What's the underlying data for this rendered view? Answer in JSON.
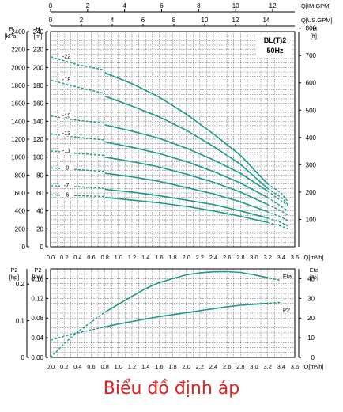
{
  "caption": "Biểu đồ định áp",
  "colors": {
    "curve": "#1a9a8a",
    "grid": "#555555",
    "caption": "#e32020",
    "axis": "#000000"
  },
  "chart_data": [
    {
      "type": "line",
      "title": "BL(T)2",
      "subtitle": "50Hz",
      "x_axes": {
        "bottom": {
          "label": "Q[m³/h]",
          "ticks": [
            0.0,
            0.2,
            0.4,
            0.6,
            0.8,
            1.0,
            1.2,
            1.4,
            1.6,
            1.8,
            2.0,
            2.2,
            2.4,
            2.6,
            2.8,
            3.0,
            3.2,
            3.4,
            3.6
          ],
          "tick_labels": [
            "0.0",
            "0.2",
            "0.4",
            "0.6",
            "0.8",
            "1.0",
            "1.2",
            "1.4",
            "1.6",
            "1.8",
            "2.0",
            "2.2",
            "2.4",
            "2.6",
            "2.8",
            "3.0",
            "3.2",
            "3.4",
            "3.6"
          ]
        },
        "top_imperial": {
          "label": "Q[IM.GPM]",
          "ticks": [
            0,
            2,
            4,
            6,
            8,
            10,
            12
          ]
        },
        "top_us": {
          "label": "Q[US.GPM]",
          "ticks": [
            0,
            2,
            4,
            6,
            8,
            10,
            12,
            14
          ]
        }
      },
      "y_axes": {
        "kpa": {
          "label_top": "P",
          "label_unit": "[kPa]",
          "ticks": [
            0,
            200,
            400,
            600,
            800,
            1000,
            1200,
            1400,
            1600,
            1800,
            2000,
            2200,
            2400
          ]
        },
        "m": {
          "label_top": "H",
          "label_unit": "[m]",
          "ticks": [
            0,
            20,
            40,
            60,
            80,
            100,
            120,
            140,
            160,
            180,
            200,
            220,
            240
          ]
        },
        "ft": {
          "label_top": "H",
          "label_unit": "[ft]",
          "ticks": [
            100,
            200,
            300,
            400,
            500,
            600,
            700,
            800
          ]
        }
      },
      "xlim": [
        0,
        3.6
      ],
      "ylim": [
        0,
        240
      ],
      "grid": true,
      "series": [
        {
          "name": "-22",
          "points": [
            [
              0,
              212
            ],
            [
              0.4,
              203
            ],
            [
              0.8,
              194
            ],
            [
              1.2,
              182
            ],
            [
              1.6,
              167
            ],
            [
              2.0,
              148
            ],
            [
              2.4,
              126
            ],
            [
              2.8,
              102
            ],
            [
              3.2,
              70
            ]
          ],
          "dashed_start": [
            [
              0,
              212
            ],
            [
              0.4,
              203
            ],
            [
              0.8,
              197
            ]
          ],
          "dashed_end": [
            [
              3.2,
              70
            ],
            [
              3.4,
              60
            ],
            [
              3.5,
              50
            ]
          ]
        },
        {
          "name": "-18",
          "points": [
            [
              0,
              186
            ],
            [
              0.4,
              178
            ],
            [
              0.8,
              168
            ],
            [
              1.2,
              157
            ],
            [
              1.6,
              145
            ],
            [
              2.0,
              130
            ],
            [
              2.4,
              112
            ],
            [
              2.8,
              92
            ],
            [
              3.2,
              65
            ]
          ],
          "dashed_start": [
            [
              0,
              186
            ],
            [
              0.4,
              178
            ],
            [
              0.8,
              171
            ]
          ],
          "dashed_end": [
            [
              3.2,
              65
            ],
            [
              3.4,
              55
            ],
            [
              3.5,
              47
            ]
          ]
        },
        {
          "name": "-15",
          "points": [
            [
              0,
              146
            ],
            [
              0.4,
              141
            ],
            [
              0.8,
              136
            ],
            [
              1.2,
              129
            ],
            [
              1.6,
              121
            ],
            [
              2.0,
              110
            ],
            [
              2.4,
              97
            ],
            [
              2.8,
              82
            ],
            [
              3.2,
              62
            ]
          ],
          "dashed_start": [
            [
              0,
              146
            ],
            [
              0.4,
              141
            ],
            [
              0.8,
              138
            ]
          ],
          "dashed_end": [
            [
              3.2,
              62
            ],
            [
              3.4,
              51
            ],
            [
              3.5,
              46
            ]
          ]
        },
        {
          "name": "-13",
          "points": [
            [
              0,
              126
            ],
            [
              0.4,
              122
            ],
            [
              0.8,
              117
            ],
            [
              1.2,
              111
            ],
            [
              1.6,
              104
            ],
            [
              2.0,
              95
            ],
            [
              2.4,
              84
            ],
            [
              2.8,
              71
            ],
            [
              3.2,
              55
            ]
          ],
          "dashed_start": [
            [
              0,
              126
            ],
            [
              0.4,
              122
            ],
            [
              0.8,
              119
            ]
          ],
          "dashed_end": [
            [
              3.2,
              55
            ],
            [
              3.4,
              45
            ],
            [
              3.5,
              40
            ]
          ]
        },
        {
          "name": "-11",
          "points": [
            [
              0,
              107
            ],
            [
              0.4,
              104
            ],
            [
              0.8,
              100
            ],
            [
              1.2,
              95
            ],
            [
              1.6,
              89
            ],
            [
              2.0,
              81
            ],
            [
              2.4,
              72
            ],
            [
              2.8,
              61
            ],
            [
              3.2,
              47
            ]
          ],
          "dashed_start": [
            [
              0,
              107
            ],
            [
              0.4,
              104
            ],
            [
              0.8,
              102
            ]
          ],
          "dashed_end": [
            [
              3.2,
              47
            ],
            [
              3.4,
              40
            ],
            [
              3.5,
              35
            ]
          ]
        },
        {
          "name": "-9",
          "points": [
            [
              0,
              88
            ],
            [
              0.4,
              86
            ],
            [
              0.8,
              82
            ],
            [
              1.2,
              78
            ],
            [
              1.6,
              73
            ],
            [
              2.0,
              66
            ],
            [
              2.4,
              59
            ],
            [
              2.8,
              50
            ],
            [
              3.2,
              39
            ]
          ],
          "dashed_start": [
            [
              0,
              88
            ],
            [
              0.4,
              86
            ],
            [
              0.8,
              84
            ]
          ],
          "dashed_end": [
            [
              3.2,
              39
            ],
            [
              3.4,
              33
            ],
            [
              3.5,
              29
            ]
          ]
        },
        {
          "name": "-7",
          "points": [
            [
              0,
              68
            ],
            [
              0.4,
              67
            ],
            [
              0.8,
              64
            ],
            [
              1.2,
              61
            ],
            [
              1.6,
              57
            ],
            [
              2.0,
              52
            ],
            [
              2.4,
              47
            ],
            [
              2.8,
              40
            ],
            [
              3.2,
              32
            ]
          ],
          "dashed_start": [
            [
              0,
              68
            ],
            [
              0.4,
              67
            ],
            [
              0.8,
              65
            ]
          ],
          "dashed_end": [
            [
              3.2,
              32
            ],
            [
              3.4,
              27
            ],
            [
              3.5,
              23
            ]
          ]
        },
        {
          "name": "-6",
          "points": [
            [
              0,
              58
            ],
            [
              0.4,
              57
            ],
            [
              0.8,
              55
            ],
            [
              1.2,
              52
            ],
            [
              1.6,
              49
            ],
            [
              2.0,
              45
            ],
            [
              2.4,
              40
            ],
            [
              2.8,
              34
            ],
            [
              3.2,
              27
            ]
          ],
          "dashed_start": [
            [
              0,
              58
            ],
            [
              0.4,
              57
            ],
            [
              0.8,
              56
            ]
          ],
          "dashed_end": [
            [
              3.2,
              27
            ],
            [
              3.4,
              23
            ],
            [
              3.5,
              20
            ]
          ]
        }
      ]
    },
    {
      "type": "line",
      "x_axis": {
        "label": "Q[m³/h]",
        "ticks": [
          0.0,
          0.2,
          0.4,
          0.6,
          0.8,
          1.0,
          1.2,
          1.4,
          1.6,
          1.8,
          2.0,
          2.2,
          2.4,
          2.6,
          2.8,
          3.0,
          3.2,
          3.4,
          3.6
        ],
        "tick_labels": [
          "0.0",
          "0.2",
          "0.4",
          "0.6",
          "0.8",
          "1.0",
          "1.2",
          "1.4",
          "1.6",
          "1.8",
          "2.0",
          "2.2",
          "2.4",
          "2.6",
          "2.8",
          "3.0",
          "3.2",
          "3.4",
          "3.6"
        ]
      },
      "y_axes": {
        "hp": {
          "label_top": "P2",
          "label_unit": "[hp]",
          "ticks": [
            0,
            0.1,
            0.2
          ],
          "tick_labels": [
            "0",
            "0.1",
            "0.2"
          ]
        },
        "kw": {
          "label_top": "P2",
          "label_unit": "[kW]",
          "ticks": [
            0,
            0.04,
            0.08,
            0.12,
            0.16
          ],
          "tick_labels": [
            "0.00",
            "0.04",
            "0.08",
            "0.12",
            "0.16"
          ]
        },
        "eta": {
          "label_top": "Eta",
          "label_unit": "[%]",
          "ticks": [
            0,
            10,
            20,
            30,
            40
          ],
          "tick_labels": [
            "0",
            "10",
            "20",
            "30",
            "40"
          ]
        }
      },
      "xlim": [
        0,
        3.6
      ],
      "ylim_kw": [
        0,
        0.18
      ],
      "ylim_eta": [
        0,
        45
      ],
      "grid": true,
      "series": [
        {
          "name": "Eta",
          "axis": "eta",
          "points": [
            [
              0,
              0
            ],
            [
              0.2,
              7
            ],
            [
              0.4,
              13
            ],
            [
              0.6,
              18
            ],
            [
              0.8,
              23
            ],
            [
              1.0,
              27
            ],
            [
              1.2,
              31
            ],
            [
              1.4,
              35
            ],
            [
              1.6,
              38
            ],
            [
              1.8,
              40
            ],
            [
              2.0,
              42
            ],
            [
              2.2,
              43
            ],
            [
              2.4,
              43.5
            ],
            [
              2.6,
              43.6
            ],
            [
              2.8,
              43.2
            ],
            [
              3.0,
              42
            ],
            [
              3.2,
              40.5
            ],
            [
              3.4,
              39
            ]
          ],
          "dashed_until": 0.8,
          "dashed_after": 3.1
        },
        {
          "name": "P2",
          "axis": "kw",
          "points": [
            [
              0,
              0.035
            ],
            [
              0.2,
              0.043
            ],
            [
              0.4,
              0.05
            ],
            [
              0.6,
              0.056
            ],
            [
              0.8,
              0.062
            ],
            [
              1.0,
              0.068
            ],
            [
              1.2,
              0.073
            ],
            [
              1.4,
              0.078
            ],
            [
              1.6,
              0.083
            ],
            [
              1.8,
              0.087
            ],
            [
              2.0,
              0.091
            ],
            [
              2.2,
              0.095
            ],
            [
              2.4,
              0.099
            ],
            [
              2.6,
              0.103
            ],
            [
              2.8,
              0.106
            ],
            [
              3.0,
              0.108
            ],
            [
              3.2,
              0.11
            ],
            [
              3.4,
              0.112
            ]
          ],
          "dashed_until": 0.8,
          "dashed_after": 3.1
        }
      ]
    }
  ]
}
